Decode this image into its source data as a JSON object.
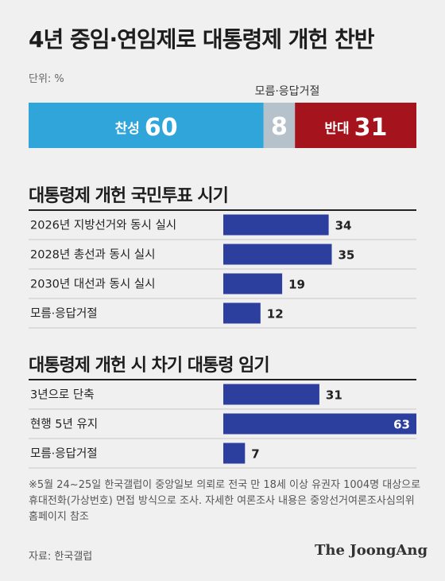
{
  "title": "4년 중임·연임제로 대통령제 개헌 찬반",
  "unit": "단위: %",
  "chart_data": [
    {
      "type": "bar",
      "stacked": true,
      "segments": [
        {
          "name": "찬성",
          "value": 60,
          "color": "#2fa5d9"
        },
        {
          "name": "모름·응답거절",
          "value": 8,
          "color": "#b5c2cc"
        },
        {
          "name": "반대",
          "value": 31,
          "color": "#a5141c"
        }
      ],
      "annotation": "모름·응답거절"
    },
    {
      "type": "bar",
      "orientation": "horizontal",
      "title": "대통령제 개헌 국민투표 시기",
      "categories": [
        "2026년 지방선거와 동시 실시",
        "2028년 총선과 동시 실시",
        "2030년 대선과 동시 실시",
        "모름·응답거절"
      ],
      "values": [
        34,
        35,
        19,
        12
      ],
      "color": "#2c3e9e"
    },
    {
      "type": "bar",
      "orientation": "horizontal",
      "title": "대통령제 개헌 시 차기 대통령 임기",
      "categories": [
        "3년으로 단축",
        "현행 5년 유지",
        "모름·응답거절"
      ],
      "values": [
        31,
        63,
        7
      ],
      "color": "#2c3e9e"
    }
  ],
  "note": "※5월 24~25일 한국갤럽이 중앙일보 의뢰로 전국 만 18세 이상 유권자 1004명 대상으로 휴대전화(가상번호) 면접 방식으로 조사. 자세한 여론조사 내용은 중앙선거여론조사심의위 홈페이지 참조",
  "source": "자료: 한국갤럽",
  "brand": "The JoongAng"
}
